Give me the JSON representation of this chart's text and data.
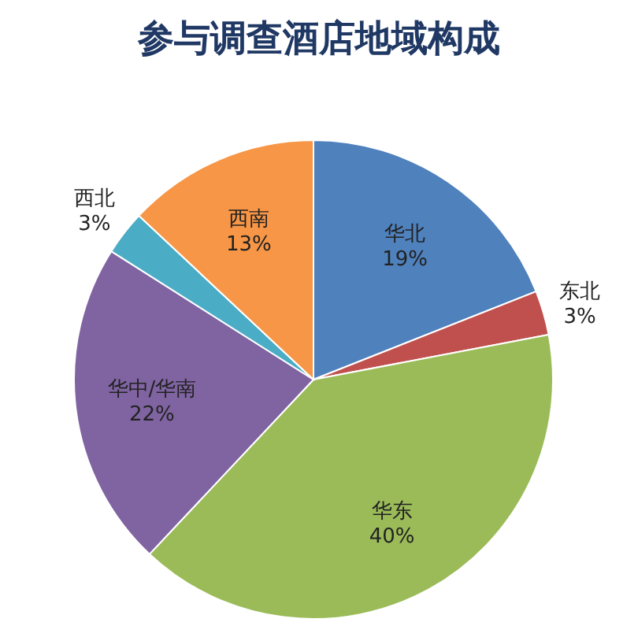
{
  "chart_data": {
    "type": "pie",
    "title": "参与调查酒店地域构成",
    "categories": [
      "华北",
      "东北",
      "华东",
      "华中/华南",
      "西北",
      "西南"
    ],
    "values": [
      19,
      3,
      40,
      22,
      3,
      13
    ],
    "colors": [
      "#4f81bd",
      "#c0504d",
      "#9bbb59",
      "#8064a2",
      "#4bacc6",
      "#f79646"
    ],
    "value_labels": [
      "19%",
      "3%",
      "40%",
      "22%",
      "3%",
      "13%"
    ]
  }
}
